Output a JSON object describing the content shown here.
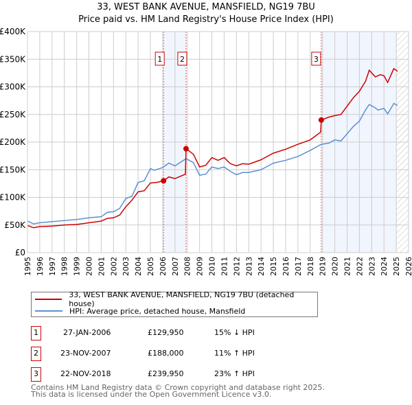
{
  "chart_data": {
    "type": "line",
    "title": "33, WEST BANK AVENUE, MANSFIELD, NG19 7BU",
    "subtitle": "Price paid vs. HM Land Registry's House Price Index (HPI)",
    "xlim": [
      1995,
      2026
    ],
    "ylim": [
      0,
      400000
    ],
    "x_ticks": [
      "1995",
      "1996",
      "1997",
      "1998",
      "1999",
      "2000",
      "2001",
      "2002",
      "2003",
      "2004",
      "2005",
      "2006",
      "2007",
      "2008",
      "2009",
      "2010",
      "2011",
      "2012",
      "2013",
      "2014",
      "2015",
      "2016",
      "2017",
      "2018",
      "2019",
      "2020",
      "2021",
      "2022",
      "2023",
      "2024",
      "2025",
      "2026"
    ],
    "y_ticks": [
      {
        "v": 0,
        "label": "£0"
      },
      {
        "v": 50000,
        "label": "£50K"
      },
      {
        "v": 100000,
        "label": "£100K"
      },
      {
        "v": 150000,
        "label": "£150K"
      },
      {
        "v": 200000,
        "label": "£200K"
      },
      {
        "v": 250000,
        "label": "£250K"
      },
      {
        "v": 300000,
        "label": "£300K"
      },
      {
        "v": 350000,
        "label": "£350K"
      },
      {
        "v": 400000,
        "label": "£400K"
      }
    ],
    "grid": true,
    "shaded_periods": [
      [
        2006.07,
        2007.9
      ],
      [
        2018.9,
        2025.0
      ]
    ],
    "forecast_hatch": [
      2025.0,
      2026
    ],
    "series": [
      {
        "name": "33, WEST BANK AVENUE, MANSFIELD, NG19 7BU (detached house)",
        "color": "#cc0000",
        "x": [
          1995,
          1995.5,
          1996,
          1997,
          1998,
          1999,
          2000,
          2001,
          2001.5,
          2002,
          2002.5,
          2003,
          2003.5,
          2004,
          2004.5,
          2005,
          2005.5,
          2006.07,
          2006.5,
          2007,
          2007.85,
          2007.9,
          2008.5,
          2009,
          2009.5,
          2010,
          2010.5,
          2011,
          2011.5,
          2012,
          2012.5,
          2013,
          2014,
          2015,
          2016,
          2017,
          2018,
          2018.85,
          2018.9,
          2019.5,
          2020,
          2020.5,
          2021,
          2021.5,
          2022,
          2022.5,
          2022.8,
          2023.3,
          2023.7,
          2024,
          2024.3,
          2024.8,
          2025.1
        ],
        "values": [
          49000,
          45000,
          47000,
          48000,
          50000,
          51000,
          54000,
          57000,
          62000,
          63000,
          68000,
          83000,
          95000,
          110000,
          112000,
          126000,
          127000,
          129950,
          137000,
          134000,
          142000,
          188000,
          178000,
          155000,
          158000,
          172000,
          167000,
          172000,
          161000,
          157000,
          161000,
          160000,
          168000,
          180000,
          187000,
          196000,
          204000,
          218000,
          239950,
          245000,
          248000,
          250000,
          265000,
          280000,
          292000,
          310000,
          330000,
          318000,
          322000,
          320000,
          308000,
          333000,
          328000
        ]
      },
      {
        "name": "HPI: Average price, detached house, Mansfield",
        "color": "#5b8fd1",
        "x": [
          1995,
          1995.5,
          1996,
          1997,
          1998,
          1999,
          2000,
          2001,
          2001.5,
          2002,
          2002.5,
          2003,
          2003.5,
          2004,
          2004.5,
          2005,
          2005.3,
          2006,
          2006.5,
          2007,
          2007.9,
          2008.5,
          2009,
          2009.5,
          2010,
          2010.5,
          2011,
          2011.5,
          2012,
          2012.5,
          2013,
          2014,
          2015,
          2016,
          2017,
          2018,
          2018.9,
          2019.5,
          2020,
          2020.5,
          2021,
          2021.5,
          2022,
          2022.5,
          2022.8,
          2023.3,
          2023.5,
          2024,
          2024.3,
          2024.8,
          2025.1
        ],
        "values": [
          57000,
          52000,
          54000,
          56000,
          58000,
          60000,
          63000,
          65000,
          73000,
          74000,
          80000,
          98000,
          102000,
          127000,
          130000,
          152000,
          149000,
          154000,
          162000,
          157000,
          170000,
          163000,
          140000,
          142000,
          155000,
          152000,
          155000,
          147000,
          141000,
          145000,
          145000,
          150000,
          162000,
          167000,
          174000,
          185000,
          196000,
          198000,
          204000,
          202000,
          215000,
          228000,
          238000,
          258000,
          268000,
          262000,
          258000,
          261000,
          251000,
          270000,
          266000
        ]
      }
    ],
    "sales": [
      {
        "id": "1",
        "x": 2006.07,
        "date": "27-JAN-2006",
        "price_value": 129950,
        "price": "£129,950",
        "hpi": "15% ↓ HPI"
      },
      {
        "id": "2",
        "x": 2007.9,
        "date": "23-NOV-2007",
        "price_value": 188000,
        "price": "£188,000",
        "hpi": "11% ↑ HPI"
      },
      {
        "id": "3",
        "x": 2018.9,
        "date": "22-NOV-2018",
        "price_value": 239950,
        "price": "£239,950",
        "hpi": "23% ↑ HPI"
      }
    ]
  },
  "footer": {
    "line1": "Contains HM Land Registry data © Crown copyright and database right 2025.",
    "line2": "This data is licensed under the Open Government Licence v3.0."
  }
}
